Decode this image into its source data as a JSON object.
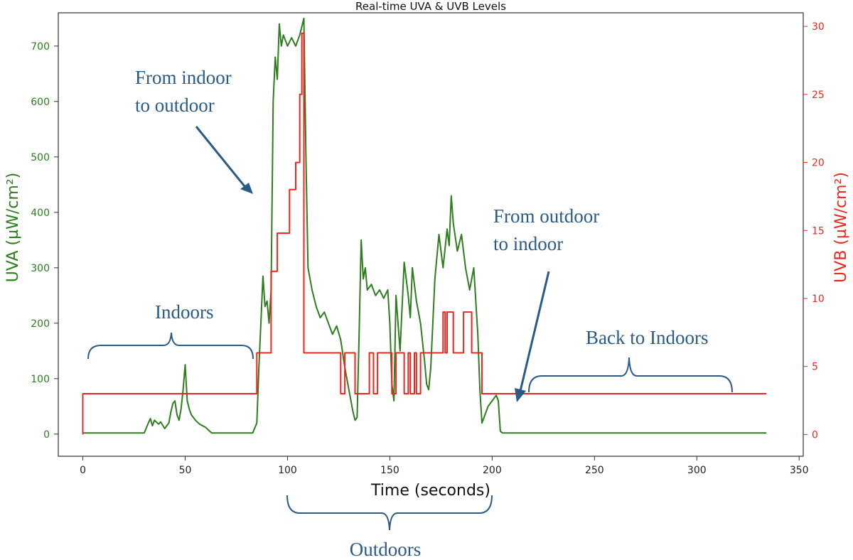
{
  "chart_data": {
    "type": "line",
    "title": "Real-time UVA & UVB Levels",
    "xlabel": "Time (seconds)",
    "ylabel_left": "UVA (µW/cm²)",
    "ylabel_right": "UVB (µW/cm²)",
    "xlim": [
      -12,
      352
    ],
    "ylim_left": [
      -40,
      760
    ],
    "ylim_right": [
      -1.6,
      31.0
    ],
    "x_ticks": [
      0,
      50,
      100,
      150,
      200,
      250,
      300,
      350
    ],
    "y_ticks_left": [
      0,
      100,
      200,
      300,
      400,
      500,
      600,
      700
    ],
    "y_ticks_right": [
      0,
      5,
      10,
      15,
      20,
      25,
      30
    ],
    "grid": false,
    "colors": {
      "uva": "#2e7d1f",
      "uvb": "#e8281e",
      "annotation": "#2a5a86",
      "axis": "#333333"
    },
    "series": [
      {
        "axis": "left",
        "points": [
          [
            0,
            2
          ],
          [
            30,
            2
          ],
          [
            32,
            20
          ],
          [
            33,
            28
          ],
          [
            34,
            15
          ],
          [
            35,
            25
          ],
          [
            37,
            18
          ],
          [
            38,
            22
          ],
          [
            40,
            10
          ],
          [
            42,
            20
          ],
          [
            43,
            40
          ],
          [
            44,
            55
          ],
          [
            45,
            60
          ],
          [
            46,
            35
          ],
          [
            47,
            25
          ],
          [
            48,
            45
          ],
          [
            49,
            80
          ],
          [
            50,
            125
          ],
          [
            51,
            60
          ],
          [
            52,
            45
          ],
          [
            53,
            35
          ],
          [
            55,
            25
          ],
          [
            57,
            18
          ],
          [
            60,
            12
          ],
          [
            62,
            5
          ],
          [
            63,
            2
          ],
          [
            83,
            2
          ],
          [
            85,
            20
          ],
          [
            86,
            120
          ],
          [
            87,
            200
          ],
          [
            88,
            285
          ],
          [
            89,
            230
          ],
          [
            90,
            240
          ],
          [
            91,
            200
          ],
          [
            92,
            260
          ],
          [
            93,
            600
          ],
          [
            94,
            680
          ],
          [
            95,
            640
          ],
          [
            96,
            740
          ],
          [
            97,
            700
          ],
          [
            98,
            720
          ],
          [
            100,
            700
          ],
          [
            102,
            715
          ],
          [
            104,
            700
          ],
          [
            106,
            720
          ],
          [
            108,
            750
          ],
          [
            109,
            500
          ],
          [
            110,
            300
          ],
          [
            112,
            260
          ],
          [
            114,
            230
          ],
          [
            116,
            210
          ],
          [
            118,
            220
          ],
          [
            120,
            200
          ],
          [
            122,
            180
          ],
          [
            124,
            195
          ],
          [
            126,
            170
          ],
          [
            128,
            120
          ],
          [
            130,
            80
          ],
          [
            132,
            40
          ],
          [
            133,
            25
          ],
          [
            134,
            30
          ],
          [
            135,
            180
          ],
          [
            136,
            350
          ],
          [
            137,
            280
          ],
          [
            138,
            300
          ],
          [
            139,
            260
          ],
          [
            141,
            270
          ],
          [
            143,
            250
          ],
          [
            145,
            260
          ],
          [
            147,
            245
          ],
          [
            149,
            260
          ],
          [
            150,
            200
          ],
          [
            151,
            90
          ],
          [
            152,
            60
          ],
          [
            153,
            250
          ],
          [
            155,
            150
          ],
          [
            157,
            310
          ],
          [
            159,
            250
          ],
          [
            160,
            210
          ],
          [
            161,
            300
          ],
          [
            163,
            240
          ],
          [
            165,
            200
          ],
          [
            167,
            130
          ],
          [
            168,
            90
          ],
          [
            169,
            80
          ],
          [
            170,
            120
          ],
          [
            172,
            280
          ],
          [
            174,
            360
          ],
          [
            176,
            300
          ],
          [
            178,
            370
          ],
          [
            179,
            340
          ],
          [
            180,
            430
          ],
          [
            181,
            380
          ],
          [
            183,
            330
          ],
          [
            185,
            360
          ],
          [
            187,
            300
          ],
          [
            189,
            260
          ],
          [
            191,
            300
          ],
          [
            193,
            180
          ],
          [
            194,
            80
          ],
          [
            195,
            20
          ],
          [
            196,
            30
          ],
          [
            198,
            50
          ],
          [
            200,
            60
          ],
          [
            202,
            70
          ],
          [
            203,
            60
          ],
          [
            204,
            5
          ],
          [
            205,
            2
          ],
          [
            334,
            2
          ]
        ]
      },
      {
        "axis": "right",
        "points": [
          [
            0,
            0
          ],
          [
            0,
            3
          ],
          [
            85,
            3
          ],
          [
            85,
            6
          ],
          [
            92,
            6
          ],
          [
            92,
            12
          ],
          [
            95,
            12
          ],
          [
            95,
            14.8
          ],
          [
            101,
            14.8
          ],
          [
            101,
            18
          ],
          [
            104,
            18
          ],
          [
            104,
            20
          ],
          [
            106,
            20
          ],
          [
            106,
            25
          ],
          [
            107,
            25
          ],
          [
            107,
            29.5
          ],
          [
            108,
            29.5
          ],
          [
            108,
            6
          ],
          [
            126,
            6
          ],
          [
            126,
            3
          ],
          [
            128,
            3
          ],
          [
            128,
            6
          ],
          [
            133,
            6
          ],
          [
            133,
            3
          ],
          [
            140,
            3
          ],
          [
            140,
            6
          ],
          [
            142,
            6
          ],
          [
            142,
            3
          ],
          [
            144,
            3
          ],
          [
            144,
            6
          ],
          [
            151,
            6
          ],
          [
            151,
            3
          ],
          [
            153,
            3
          ],
          [
            153,
            6
          ],
          [
            157,
            6
          ],
          [
            157,
            3
          ],
          [
            159,
            3
          ],
          [
            159,
            6
          ],
          [
            160,
            6
          ],
          [
            160,
            3
          ],
          [
            162,
            3
          ],
          [
            162,
            6
          ],
          [
            163,
            6
          ],
          [
            163,
            3
          ],
          [
            165,
            3
          ],
          [
            165,
            6
          ],
          [
            176,
            6
          ],
          [
            176,
            9
          ],
          [
            177,
            9
          ],
          [
            177,
            6
          ],
          [
            178,
            6
          ],
          [
            178,
            9
          ],
          [
            181,
            9
          ],
          [
            181,
            6
          ],
          [
            186,
            6
          ],
          [
            186,
            9
          ],
          [
            190,
            9
          ],
          [
            190,
            6
          ],
          [
            195,
            6
          ],
          [
            195,
            3
          ],
          [
            334,
            3
          ]
        ]
      }
    ],
    "annotations": [
      {
        "name": "from-indoor-to-outdoor",
        "lines": [
          "From indoor",
          "to outdoor"
        ]
      },
      {
        "name": "from-outdoor-to-indoor",
        "lines": [
          "From outdoor",
          "to indoor"
        ]
      },
      {
        "name": "indoors",
        "lines": [
          "Indoors"
        ]
      },
      {
        "name": "back-to-indoors",
        "lines": [
          "Back to Indoors"
        ]
      },
      {
        "name": "outdoors",
        "lines": [
          "Outdoors"
        ]
      }
    ]
  }
}
